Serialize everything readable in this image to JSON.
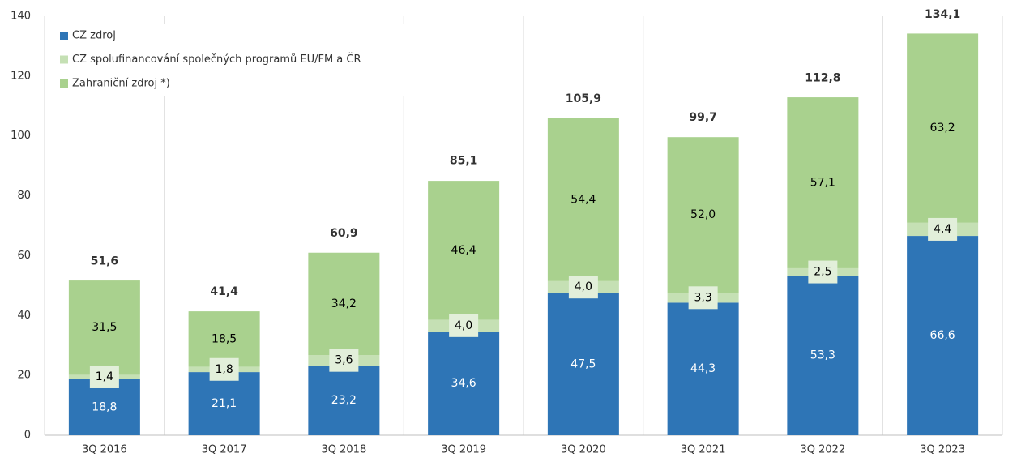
{
  "chart_data": {
    "type": "stacked_bar",
    "categories": [
      "3Q 2016",
      "3Q 2017",
      "3Q 2018",
      "3Q 2019",
      "3Q 2020",
      "3Q 2021",
      "3Q 2022",
      "3Q 2023"
    ],
    "series": [
      {
        "name": "CZ zdroj",
        "color": "#2e75b6",
        "label_color": "#ffffff",
        "values": [
          18.8,
          21.1,
          23.2,
          34.6,
          47.5,
          44.3,
          53.3,
          66.6
        ],
        "value_labels": [
          "18,8",
          "21,1",
          "23,2",
          "34,6",
          "47,5",
          "44,3",
          "53,3",
          "66,6"
        ]
      },
      {
        "name": "CZ spolufinancování společných programů EU/FM a ČR",
        "color": "#c5e0b4",
        "label_color": "#000000",
        "values": [
          1.4,
          1.8,
          3.6,
          4.0,
          4.0,
          3.3,
          2.5,
          4.4
        ],
        "value_labels": [
          "1,4",
          "1,8",
          "3,6",
          "4,0",
          "4,0",
          "3,3",
          "2,5",
          "4,4"
        ]
      },
      {
        "name": "Zahraniční zdroj *)",
        "color": "#a9d18e",
        "label_color": "#000000",
        "values": [
          31.5,
          18.5,
          34.2,
          46.4,
          54.4,
          52.0,
          57.1,
          63.2
        ],
        "value_labels": [
          "31,5",
          "18,5",
          "34,2",
          "46,4",
          "54,4",
          "52,0",
          "57,1",
          "63,2"
        ]
      }
    ],
    "totals": {
      "values": [
        51.6,
        41.4,
        60.9,
        85.1,
        105.9,
        99.7,
        112.8,
        134.1
      ],
      "value_labels": [
        "51,6",
        "41,4",
        "60,9",
        "85,1",
        "105,9",
        "99,7",
        "112,8",
        "134,1"
      ]
    },
    "ylim": [
      0,
      140
    ],
    "yticks": [
      0,
      20,
      40,
      60,
      80,
      100,
      120,
      140
    ],
    "legend": "top-left"
  }
}
